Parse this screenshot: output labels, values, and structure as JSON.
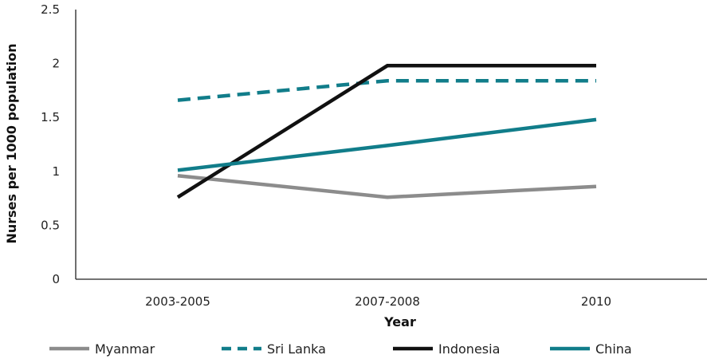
{
  "chart_data": {
    "type": "line",
    "title": "",
    "xlabel": "Year",
    "ylabel": "Nurses per 1000 population",
    "categories": [
      "2003-2005",
      "2007-2008",
      "2010"
    ],
    "ylim": [
      0,
      2.5
    ],
    "yticks": [
      "0",
      "0.5",
      "1",
      "1.5",
      "2",
      "2.5"
    ],
    "grid": false,
    "legend_position": "bottom",
    "series": [
      {
        "name": "Myanmar",
        "values": [
          0.96,
          0.76,
          0.86
        ],
        "color": "#8c8c8c",
        "dashed": false
      },
      {
        "name": "Sri Lanka",
        "values": [
          1.66,
          1.84,
          1.84
        ],
        "color": "#117d8a",
        "dashed": true
      },
      {
        "name": "Indonesia",
        "values": [
          0.76,
          1.98,
          1.98
        ],
        "color": "#111111",
        "dashed": false
      },
      {
        "name": "China",
        "values": [
          1.01,
          1.24,
          1.48
        ],
        "color": "#117d8a",
        "dashed": false
      }
    ]
  }
}
